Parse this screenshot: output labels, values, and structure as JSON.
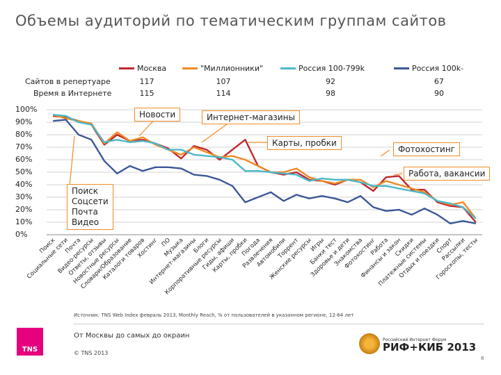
{
  "title": "Объемы аудиторий по тематическим группам сайтов",
  "legend": [
    {
      "name": "Москва",
      "color": "#c0272d"
    },
    {
      "name": "\"Миллионники\"",
      "color": "#f08a24"
    },
    {
      "name": "Россия 100-799k",
      "color": "#4bb8c8"
    },
    {
      "name": "Россия 100k-",
      "color": "#3b5796"
    }
  ],
  "stats": {
    "sites_label": "Сайтов в репертуаре",
    "time_label": "Время в Интернете",
    "sites": [
      "117",
      "107",
      "92",
      "67"
    ],
    "time": [
      "115",
      "114",
      "98",
      "90"
    ]
  },
  "callouts": {
    "news": "Новости",
    "shops": "Интернет-магазины",
    "maps": "Карты, пробки",
    "photo": "Фотохостинг",
    "jobs": "Работа, вакансии",
    "list": [
      "Поиск",
      "Соцсети",
      "Почта",
      "Видео"
    ]
  },
  "chart_data": {
    "type": "line",
    "ylim": [
      0,
      100
    ],
    "yticks": [
      "100%",
      "90%",
      "80%",
      "70%",
      "60%",
      "50%",
      "40%",
      "30%",
      "20%",
      "10%",
      "0%"
    ],
    "categories": [
      "Поиск",
      "Социальные сети",
      "Почта",
      "Видео-ресурсы",
      "Ответы, отзывы",
      "Новостные ресурсы",
      "Словари/Образование",
      "Каталоги товаров",
      "Хостинг",
      "ПО",
      "Музыка",
      "Интернет-магазины",
      "Блоги",
      "Корпоративные ресурсы",
      "Гиды, афиши",
      "Карты, пробки",
      "Погода",
      "Развлечения",
      "Автомобили",
      "Торрент",
      "Женские ресурсы",
      "Игры",
      "Банки тест",
      "Здоровье и дети",
      "Знакомства",
      "Фотохостинг",
      "Работа",
      "Финансы и закон",
      "Скидки",
      "Платежные системы",
      "Отдых и поездки",
      "Спорт",
      "Рассылки",
      "Гороскопы, тесты"
    ],
    "series": [
      {
        "name": "Москва",
        "color": "#c0272d",
        "values": [
          95,
          94,
          91,
          88,
          72,
          80,
          75,
          76,
          73,
          69,
          61,
          71,
          68,
          60,
          68,
          76,
          55,
          50,
          48,
          50,
          44,
          43,
          40,
          44,
          42,
          35,
          46,
          47,
          36,
          36,
          26,
          23,
          22,
          10
        ]
      },
      {
        "name": "\"Миллионники\"",
        "color": "#f08a24",
        "values": [
          96,
          93,
          91,
          89,
          73,
          82,
          75,
          78,
          72,
          68,
          64,
          70,
          66,
          62,
          63,
          60,
          55,
          50,
          50,
          53,
          46,
          43,
          41,
          44,
          44,
          38,
          43,
          40,
          37,
          34,
          27,
          24,
          26,
          13
        ]
      },
      {
        "name": "Россия 100-799k",
        "color": "#4bb8c8",
        "values": [
          96,
          95,
          90,
          88,
          74,
          76,
          74,
          75,
          73,
          68,
          68,
          64,
          63,
          62,
          60,
          51,
          51,
          50,
          49,
          48,
          43,
          45,
          44,
          44,
          42,
          39,
          39,
          37,
          35,
          33,
          27,
          25,
          22,
          13
        ]
      },
      {
        "name": "Россия 100k-",
        "color": "#3b5796",
        "values": [
          91,
          92,
          80,
          76,
          59,
          49,
          55,
          51,
          54,
          54,
          53,
          48,
          47,
          44,
          39,
          26,
          30,
          34,
          27,
          32,
          29,
          31,
          29,
          26,
          31,
          22,
          19,
          20,
          16,
          21,
          16,
          9,
          11,
          9
        ]
      }
    ]
  },
  "footer": {
    "source": "Источник: TNS Web Index февраль 2013, Monthly Reach, % от пользователей в указанном регионе, 12-64 лет",
    "tagline": "От Москвы до самых до окраин",
    "copyright": "© TNS 2013",
    "tns_logo": "TNS",
    "riff_small": "Российский Интернет Форум",
    "riff_big": "РИФ+КИБ 2013",
    "page": "8"
  }
}
